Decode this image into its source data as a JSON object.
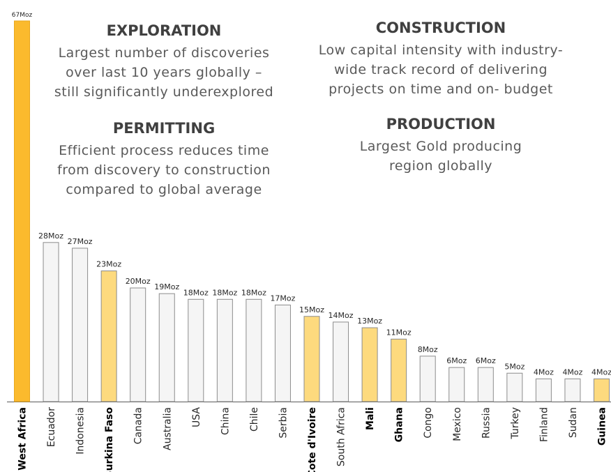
{
  "panels": {
    "exploration": {
      "title": "EXPLORATION",
      "lines": [
        "Largest number of discoveries",
        "over last 10 years globally –",
        "still significantly underexplored"
      ]
    },
    "permitting": {
      "title": "PERMITTING",
      "lines": [
        "Efficient process reduces time",
        "from discovery to construction",
        "compared to global average"
      ]
    },
    "construction": {
      "title": "CONSTRUCTION",
      "lines": [
        "Low capital intensity with industry-",
        "wide track  record of delivering",
        "projects on time and on- budget"
      ]
    },
    "production": {
      "title": "PRODUCTION",
      "lines": [
        "Largest Gold producing",
        "region globally"
      ]
    }
  },
  "colors": {
    "west_africa": "#FBBA2D",
    "west_africa_country": "#FDDA7E",
    "other": "#F5F5F5",
    "outline": "#8C8C8C",
    "axis": "#595959"
  },
  "chart_data": {
    "type": "bar",
    "title": "",
    "xlabel": "",
    "ylabel": "",
    "ylim": [
      0,
      67
    ],
    "unit": "Moz",
    "categories": [
      "West Africa",
      "Ecuador",
      "Indonesia",
      "Burkina Faso",
      "Canada",
      "Australia",
      "USA",
      "China",
      "Chile",
      "Serbia",
      "Cote d'Ivoire",
      "South Africa",
      "Mali",
      "Ghana",
      "Congo",
      "Mexico",
      "Russia",
      "Turkey",
      "Finland",
      "Sudan",
      "Guinea"
    ],
    "values": [
      67,
      28,
      27,
      23,
      20,
      19,
      18,
      18,
      18,
      17,
      15,
      14,
      13,
      11,
      8,
      6,
      6,
      5,
      4,
      4,
      4
    ],
    "value_labels": [
      "67Moz",
      "28Moz",
      "27Moz",
      "23Moz",
      "20Moz",
      "19Moz",
      "18Moz",
      "18Moz",
      "18Moz",
      "17Moz",
      "15Moz",
      "14Moz",
      "13Moz",
      "11Moz",
      "8Moz",
      "6Moz",
      "6Moz",
      "5Moz",
      "4Moz",
      "4Moz",
      "4Moz"
    ],
    "group": [
      "region",
      "other",
      "other",
      "west_africa_country",
      "other",
      "other",
      "other",
      "other",
      "other",
      "other",
      "west_africa_country",
      "other",
      "west_africa_country",
      "west_africa_country",
      "other",
      "other",
      "other",
      "other",
      "other",
      "other",
      "west_africa_country"
    ],
    "bold_labels": [
      "West Africa",
      "Burkina Faso",
      "Cote d'Ivoire",
      "Mali",
      "Ghana",
      "Guinea"
    ]
  }
}
